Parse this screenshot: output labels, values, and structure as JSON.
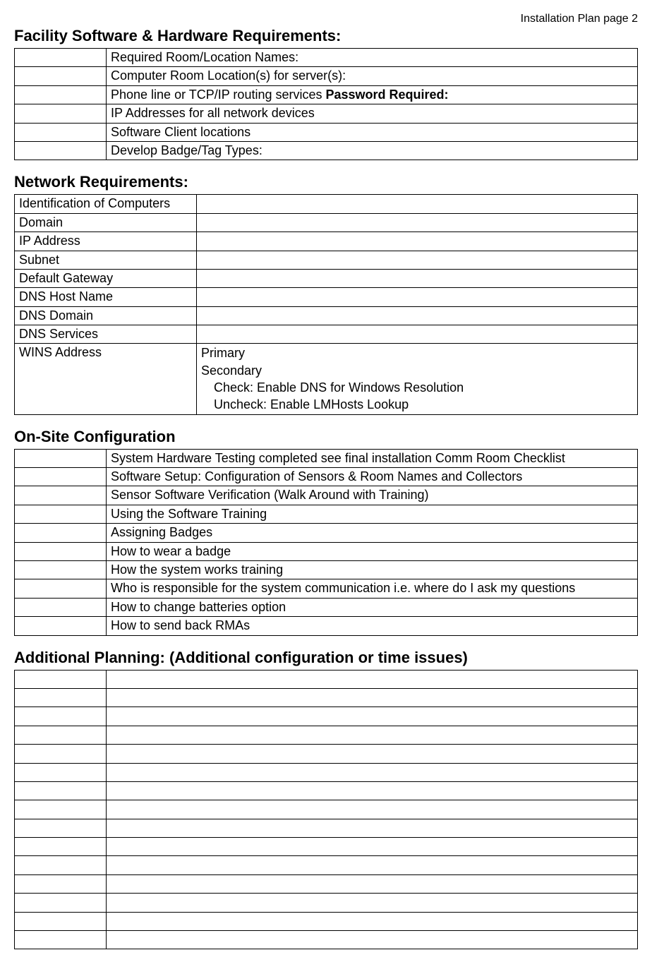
{
  "header": "Installation Plan page 2",
  "sections": {
    "facility": {
      "title": "Facility Software & Hardware Requirements:",
      "rows": [
        {
          "c1": "",
          "c2": "Required Room/Location Names:"
        },
        {
          "c1": "",
          "c2": "Computer Room Location(s) for server(s):"
        },
        {
          "c1": "",
          "c2_prefix": "Phone line or TCP/IP routing services ",
          "c2_bold": "Password Required:"
        },
        {
          "c1": "",
          "c2": "IP Addresses for all network devices"
        },
        {
          "c1": "",
          "c2": "Software Client locations"
        },
        {
          "c1": "",
          "c2": "Develop Badge/Tag Types:"
        }
      ]
    },
    "network": {
      "title": "Network Requirements:",
      "rows": [
        {
          "label": "Identification of Computers",
          "value": ""
        },
        {
          "label": "Domain",
          "value": ""
        },
        {
          "label": "IP Address",
          "value": ""
        },
        {
          "label": "Subnet",
          "value": ""
        },
        {
          "label": "Default Gateway",
          "value": ""
        },
        {
          "label": "DNS Host Name",
          "value": ""
        },
        {
          "label": "DNS Domain",
          "value": ""
        },
        {
          "label": "DNS Services",
          "value": ""
        }
      ],
      "wins": {
        "label": "WINS Address",
        "line1": "Primary",
        "line2": "Secondary",
        "line3": "Check: Enable DNS for Windows Resolution",
        "line4": "Uncheck: Enable LMHosts Lookup"
      }
    },
    "onsite": {
      "title": "On-Site Configuration",
      "rows": [
        {
          "c1": "",
          "c2": "System Hardware Testing completed see final installation Comm Room Checklist"
        },
        {
          "c1": "",
          "c2": "Software Setup: Configuration of Sensors & Room Names and Collectors"
        },
        {
          "c1": "",
          "c2": "Sensor Software Verification (Walk Around with Training)"
        },
        {
          "c1": "",
          "c2": "Using the Software Training"
        },
        {
          "c1": "",
          "c2": "Assigning Badges"
        },
        {
          "c1": "",
          "c2": "How to wear a badge"
        },
        {
          "c1": "",
          "c2": "How the system works training"
        },
        {
          "c1": "",
          "c2": "Who is responsible for the system communication i.e. where do I ask my questions"
        },
        {
          "c1": "",
          "c2": "How to change batteries option"
        },
        {
          "c1": "",
          "c2": "How to send back RMAs"
        }
      ]
    },
    "additional": {
      "title": "Additional Planning: (Additional configuration or time issues)",
      "blank_rows": 15
    }
  }
}
